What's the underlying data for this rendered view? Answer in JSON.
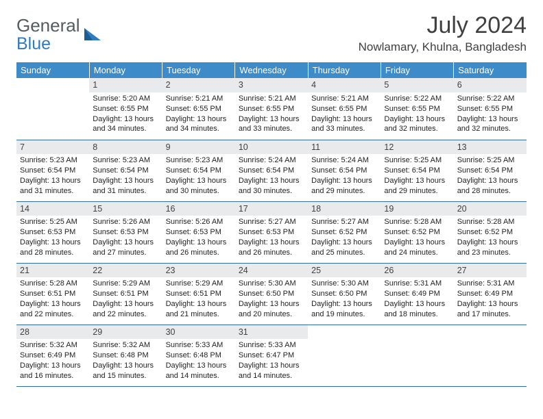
{
  "logo": {
    "line1": "General",
    "line2": "Blue"
  },
  "title": "July 2024",
  "location": "Nowlamary, Khulna, Bangladesh",
  "colors": {
    "header_bg": "#3e8bca",
    "header_text": "#ffffff",
    "daynum_bg": "#e9eaeb",
    "border": "#2f6ea5",
    "logo_gray": "#555c60",
    "logo_blue": "#2f7bbf"
  },
  "day_headers": [
    "Sunday",
    "Monday",
    "Tuesday",
    "Wednesday",
    "Thursday",
    "Friday",
    "Saturday"
  ],
  "weeks": [
    [
      {
        "empty": true
      },
      {
        "n": "1",
        "sr": "Sunrise: 5:20 AM",
        "ss": "Sunset: 6:55 PM",
        "dl": "Daylight: 13 hours and 34 minutes."
      },
      {
        "n": "2",
        "sr": "Sunrise: 5:21 AM",
        "ss": "Sunset: 6:55 PM",
        "dl": "Daylight: 13 hours and 34 minutes."
      },
      {
        "n": "3",
        "sr": "Sunrise: 5:21 AM",
        "ss": "Sunset: 6:55 PM",
        "dl": "Daylight: 13 hours and 33 minutes."
      },
      {
        "n": "4",
        "sr": "Sunrise: 5:21 AM",
        "ss": "Sunset: 6:55 PM",
        "dl": "Daylight: 13 hours and 33 minutes."
      },
      {
        "n": "5",
        "sr": "Sunrise: 5:22 AM",
        "ss": "Sunset: 6:55 PM",
        "dl": "Daylight: 13 hours and 32 minutes."
      },
      {
        "n": "6",
        "sr": "Sunrise: 5:22 AM",
        "ss": "Sunset: 6:55 PM",
        "dl": "Daylight: 13 hours and 32 minutes."
      }
    ],
    [
      {
        "n": "7",
        "sr": "Sunrise: 5:23 AM",
        "ss": "Sunset: 6:54 PM",
        "dl": "Daylight: 13 hours and 31 minutes."
      },
      {
        "n": "8",
        "sr": "Sunrise: 5:23 AM",
        "ss": "Sunset: 6:54 PM",
        "dl": "Daylight: 13 hours and 31 minutes."
      },
      {
        "n": "9",
        "sr": "Sunrise: 5:23 AM",
        "ss": "Sunset: 6:54 PM",
        "dl": "Daylight: 13 hours and 30 minutes."
      },
      {
        "n": "10",
        "sr": "Sunrise: 5:24 AM",
        "ss": "Sunset: 6:54 PM",
        "dl": "Daylight: 13 hours and 30 minutes."
      },
      {
        "n": "11",
        "sr": "Sunrise: 5:24 AM",
        "ss": "Sunset: 6:54 PM",
        "dl": "Daylight: 13 hours and 29 minutes."
      },
      {
        "n": "12",
        "sr": "Sunrise: 5:25 AM",
        "ss": "Sunset: 6:54 PM",
        "dl": "Daylight: 13 hours and 29 minutes."
      },
      {
        "n": "13",
        "sr": "Sunrise: 5:25 AM",
        "ss": "Sunset: 6:54 PM",
        "dl": "Daylight: 13 hours and 28 minutes."
      }
    ],
    [
      {
        "n": "14",
        "sr": "Sunrise: 5:25 AM",
        "ss": "Sunset: 6:53 PM",
        "dl": "Daylight: 13 hours and 28 minutes."
      },
      {
        "n": "15",
        "sr": "Sunrise: 5:26 AM",
        "ss": "Sunset: 6:53 PM",
        "dl": "Daylight: 13 hours and 27 minutes."
      },
      {
        "n": "16",
        "sr": "Sunrise: 5:26 AM",
        "ss": "Sunset: 6:53 PM",
        "dl": "Daylight: 13 hours and 26 minutes."
      },
      {
        "n": "17",
        "sr": "Sunrise: 5:27 AM",
        "ss": "Sunset: 6:53 PM",
        "dl": "Daylight: 13 hours and 26 minutes."
      },
      {
        "n": "18",
        "sr": "Sunrise: 5:27 AM",
        "ss": "Sunset: 6:52 PM",
        "dl": "Daylight: 13 hours and 25 minutes."
      },
      {
        "n": "19",
        "sr": "Sunrise: 5:28 AM",
        "ss": "Sunset: 6:52 PM",
        "dl": "Daylight: 13 hours and 24 minutes."
      },
      {
        "n": "20",
        "sr": "Sunrise: 5:28 AM",
        "ss": "Sunset: 6:52 PM",
        "dl": "Daylight: 13 hours and 23 minutes."
      }
    ],
    [
      {
        "n": "21",
        "sr": "Sunrise: 5:28 AM",
        "ss": "Sunset: 6:51 PM",
        "dl": "Daylight: 13 hours and 22 minutes."
      },
      {
        "n": "22",
        "sr": "Sunrise: 5:29 AM",
        "ss": "Sunset: 6:51 PM",
        "dl": "Daylight: 13 hours and 22 minutes."
      },
      {
        "n": "23",
        "sr": "Sunrise: 5:29 AM",
        "ss": "Sunset: 6:51 PM",
        "dl": "Daylight: 13 hours and 21 minutes."
      },
      {
        "n": "24",
        "sr": "Sunrise: 5:30 AM",
        "ss": "Sunset: 6:50 PM",
        "dl": "Daylight: 13 hours and 20 minutes."
      },
      {
        "n": "25",
        "sr": "Sunrise: 5:30 AM",
        "ss": "Sunset: 6:50 PM",
        "dl": "Daylight: 13 hours and 19 minutes."
      },
      {
        "n": "26",
        "sr": "Sunrise: 5:31 AM",
        "ss": "Sunset: 6:49 PM",
        "dl": "Daylight: 13 hours and 18 minutes."
      },
      {
        "n": "27",
        "sr": "Sunrise: 5:31 AM",
        "ss": "Sunset: 6:49 PM",
        "dl": "Daylight: 13 hours and 17 minutes."
      }
    ],
    [
      {
        "n": "28",
        "sr": "Sunrise: 5:32 AM",
        "ss": "Sunset: 6:49 PM",
        "dl": "Daylight: 13 hours and 16 minutes."
      },
      {
        "n": "29",
        "sr": "Sunrise: 5:32 AM",
        "ss": "Sunset: 6:48 PM",
        "dl": "Daylight: 13 hours and 15 minutes."
      },
      {
        "n": "30",
        "sr": "Sunrise: 5:33 AM",
        "ss": "Sunset: 6:48 PM",
        "dl": "Daylight: 13 hours and 14 minutes."
      },
      {
        "n": "31",
        "sr": "Sunrise: 5:33 AM",
        "ss": "Sunset: 6:47 PM",
        "dl": "Daylight: 13 hours and 14 minutes."
      },
      {
        "empty": true
      },
      {
        "empty": true
      },
      {
        "empty": true
      }
    ]
  ]
}
